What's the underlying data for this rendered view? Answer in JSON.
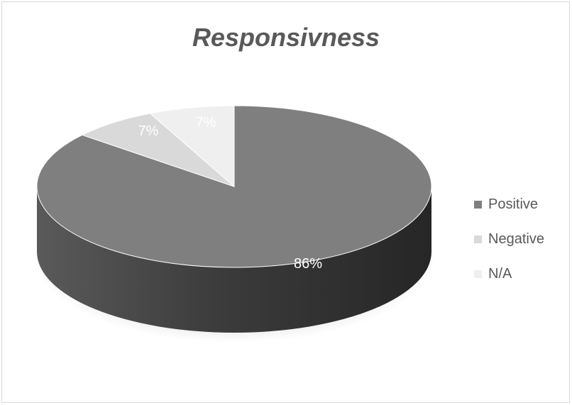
{
  "chart_data": {
    "type": "pie",
    "title": "Responsivness",
    "categories": [
      "Positive",
      "Negative",
      "N/A"
    ],
    "values": [
      86,
      7,
      7
    ],
    "data_labels": [
      "86%",
      "7%",
      "7%"
    ],
    "colors": [
      "#7f7f7f",
      "#d9d9d9",
      "#efefef"
    ],
    "side_colors": [
      "#4a4a4a",
      "#aaaaaa",
      "#c8c8c8"
    ],
    "label_color": "#ffffff",
    "legend_position": "right",
    "style": "3d"
  }
}
